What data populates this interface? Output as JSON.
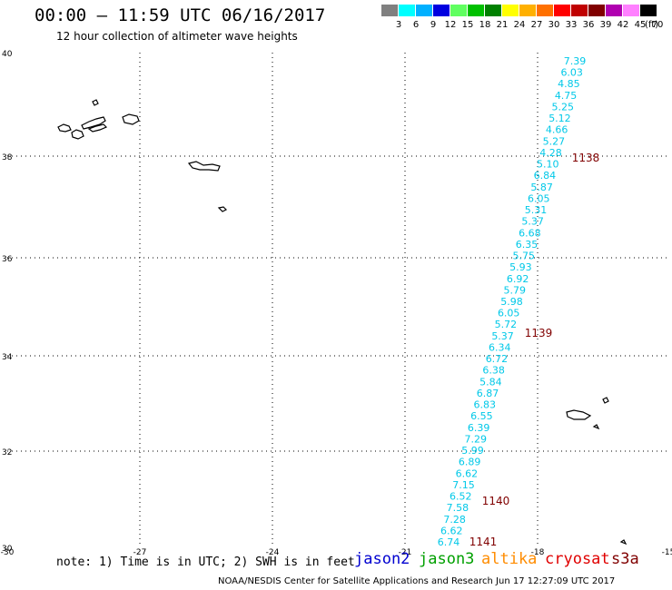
{
  "header": {
    "title": "00:00 – 11:59 UTC 06/16/2017",
    "subtitle": "12 hour collection of altimeter wave heights"
  },
  "legend": {
    "unit": "(ft)",
    "colors": [
      "#808080",
      "#00ffff",
      "#00b0ff",
      "#0000e0",
      "#60ff60",
      "#00c000",
      "#008000",
      "#ffff00",
      "#ffb000",
      "#ff7000",
      "#ff0000",
      "#c00000",
      "#800000",
      "#b000b0",
      "#ff80ff",
      "#000000"
    ],
    "labels": [
      "3",
      "6",
      "9",
      "12",
      "15",
      "18",
      "21",
      "24",
      "27",
      "30",
      "33",
      "36",
      "39",
      "42",
      "45",
      "70"
    ]
  },
  "axes": {
    "lat_ticks": [
      "40",
      "38",
      "36",
      "34",
      "32",
      "30"
    ],
    "lon_ticks": [
      "-30",
      "-27",
      "-24",
      "-21",
      "-18",
      "-15"
    ]
  },
  "track": {
    "color": "#00c8e8",
    "values": [
      "7.39",
      "6.03",
      "4.85",
      "4.75",
      "5.25",
      "5.12",
      "4.66",
      "5.27",
      "4.28",
      "5.10",
      "6.84",
      "5.87",
      "6.05",
      "5.31",
      "5.37",
      "6.68",
      "6.35",
      "5.75",
      "5.93",
      "6.92",
      "5.79",
      "5.98",
      "6.05",
      "5.72",
      "5.37",
      "6.34",
      "6.72",
      "6.38",
      "5.84",
      "6.87",
      "6.83",
      "6.55",
      "6.39",
      "7.29",
      "5.99",
      "6.89",
      "6.62",
      "7.15",
      "6.52",
      "7.58",
      "7.28",
      "6.62",
      "6.74"
    ]
  },
  "orbits": [
    {
      "label": "1138",
      "color": "#800000"
    },
    {
      "label": "1139",
      "color": "#800000"
    },
    {
      "label": "1140",
      "color": "#800000"
    },
    {
      "label": "1141",
      "color": "#800000"
    }
  ],
  "note": "note: 1) Time is in UTC; 2) SWH is in feet",
  "satellites": [
    {
      "name": "jason2",
      "color": "#0000d0"
    },
    {
      "name": "jason3",
      "color": "#00a000"
    },
    {
      "name": "altika",
      "color": "#ff8c00"
    },
    {
      "name": "cryosat",
      "color": "#e00000"
    },
    {
      "name": "s3a",
      "color": "#800000"
    }
  ],
  "footer": "NOAA/NESDIS Center for Satellite Applications and Research   Jun 17 12:27:09 UTC 2017"
}
